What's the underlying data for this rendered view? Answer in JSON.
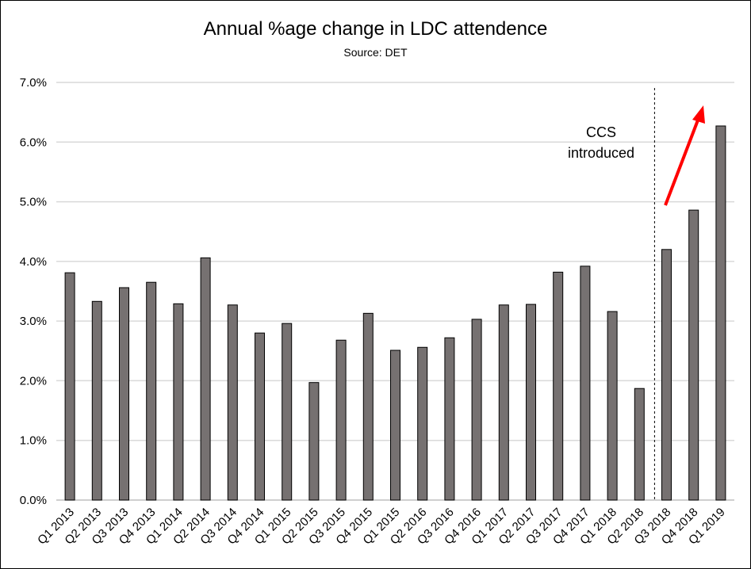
{
  "chart_data": {
    "type": "bar",
    "title": "Annual %age change in LDC attendence",
    "subtitle": "Source: DET",
    "xlabel": "",
    "ylabel": "",
    "ylim": [
      0,
      7
    ],
    "yticks": [
      "0.0%",
      "1.0%",
      "2.0%",
      "3.0%",
      "4.0%",
      "5.0%",
      "6.0%",
      "7.0%"
    ],
    "grid": true,
    "categories": [
      "Q1 2013",
      "Q2 2013",
      "Q3 2013",
      "Q4 2013",
      "Q1 2014",
      "Q2 2014",
      "Q3 2014",
      "Q4 2014",
      "Q1 2015",
      "Q2 2015",
      "Q3 2015",
      "Q4 2015",
      "Q1 2015",
      "Q2 2016",
      "Q3 2016",
      "Q4 2016",
      "Q1 2017",
      "Q2 2017",
      "Q3 2017",
      "Q4 2017",
      "Q1 2018",
      "Q2 2018",
      "Q3 2018",
      "Q4 2018",
      "Q1 2019"
    ],
    "values": [
      3.81,
      3.33,
      3.56,
      3.65,
      3.29,
      4.06,
      3.27,
      2.8,
      2.96,
      1.97,
      2.68,
      3.13,
      2.51,
      2.56,
      2.72,
      3.03,
      3.27,
      3.28,
      3.82,
      3.92,
      3.16,
      1.87,
      4.2,
      4.86,
      6.27
    ],
    "bar_color": "#767171",
    "annotation": {
      "text_line1": "CCS",
      "text_line2": "introduced",
      "marker_between": [
        "Q2 2018",
        "Q3 2018"
      ]
    },
    "arrow_color": "#ff0000"
  }
}
